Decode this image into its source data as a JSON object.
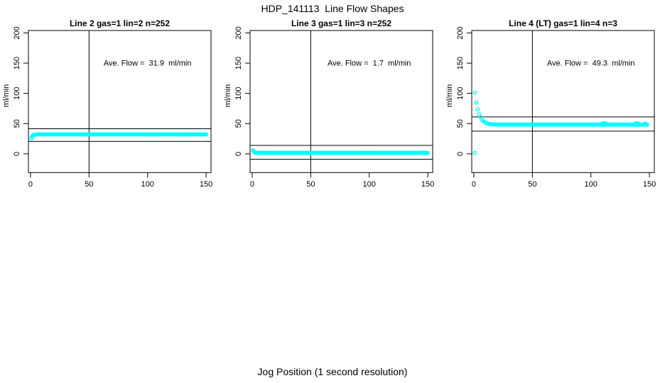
{
  "figure": {
    "title": "HDP_141113  Line Flow Shapes",
    "xlabel": "Jog Position (1 second resolution)",
    "background": "#FFFFFF",
    "axis_color": "#000000",
    "point_color": "#00FFFF"
  },
  "chart_data": {
    "type": "scatter",
    "layout": "1x3-panels",
    "shared": {
      "ylabel": "ml/min",
      "x_ticks": [
        0,
        50,
        100,
        150
      ],
      "y_ticks": [
        0,
        50,
        100,
        150,
        200
      ],
      "x_range": [
        -1.8,
        154.2
      ],
      "y_range": [
        -31,
        204
      ],
      "grid": false,
      "legend": "none",
      "marker": "open-circle",
      "marker_color": "#00FFFF",
      "ref_line_x": 50,
      "annotation_xy": [
        100,
        146
      ]
    },
    "panels": [
      {
        "title": "Line 2 gas=1 lin=2 n=252",
        "annotation": "Ave. Flow =  31.9  ml/min",
        "ave_flow_ml_min": 31.9,
        "n": 252,
        "ref_lines_y": [
          41.5,
          20.5
        ],
        "series": {
          "name": "line2-flow",
          "shape": "brief initial dip then flat at ~32 ml/min from x~2 to x=150",
          "flat": 32.1,
          "amp": -7,
          "tau": 1.0,
          "x0": 0.6,
          "segments": [
            {
              "x_from": 0.6,
              "x_to": 150,
              "step": 0.6
            }
          ],
          "extra_points": [],
          "outliers": []
        }
      },
      {
        "title": "Line 3 gas=1 lin=3 n=252",
        "annotation": "Ave. Flow =  1.7  ml/min",
        "ave_flow_ml_min": 1.7,
        "n": 252,
        "ref_lines_y": [
          14,
          -9
        ],
        "series": {
          "name": "line3-flow",
          "shape": "starts ~6 then flat at ~1.7 ml/min from x~3 to x=150",
          "flat": 1.6,
          "amp": 4.2,
          "tau": 0.9,
          "x0": 0.6,
          "segments": [
            {
              "x_from": 0.6,
              "x_to": 150,
              "step": 0.6
            }
          ],
          "extra_points": [],
          "outliers": []
        }
      },
      {
        "title": "Line 4 (LT) gas=1 lin=4 n=3",
        "annotation": "Ave. Flow =  49.3  ml/min",
        "ave_flow_ml_min": 49.3,
        "n": 3,
        "ref_lines_y": [
          61,
          37.5
        ],
        "series": {
          "name": "line4-flow",
          "shape": "starts ~101, exponential decay to flat ~48 ml/min by x~12, flat to x=148",
          "flat": 48.3,
          "amp": 53,
          "tau": 3.2,
          "x0": 1,
          "segments": [
            {
              "x_from": 1,
              "x_to": 13,
              "step": 1.2
            },
            {
              "x_from": 13.6,
              "x_to": 148,
              "step": 0.6
            }
          ],
          "extra_points": [
            [
              110,
              50.2
            ],
            [
              111.2,
              50.9
            ],
            [
              112.4,
              50.4
            ],
            [
              138,
              49.9
            ],
            [
              139.2,
              50.7
            ],
            [
              140.4,
              50.2
            ],
            [
              146.4,
              50.0
            ]
          ],
          "outliers": [
            [
              0.8,
              1.5
            ]
          ]
        }
      }
    ]
  }
}
